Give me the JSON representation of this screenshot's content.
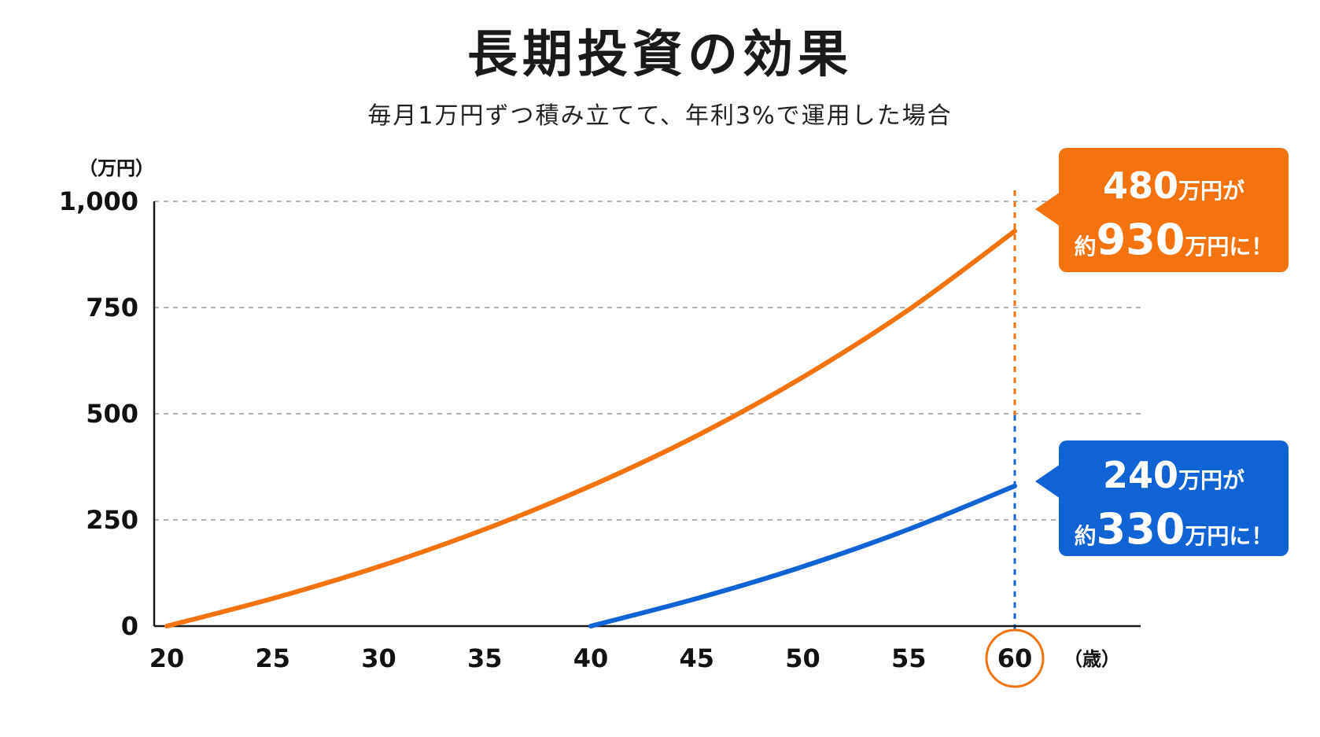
{
  "title": "長期投資の効果",
  "subtitle": "毎月1万円ずつ積み立てて、年利3%で運用した場合",
  "colors": {
    "orange": "#F5730F",
    "blue": "#0F63D4",
    "axis": "#1a1a1a",
    "grid": "#9a9a9a",
    "text": "#111111"
  },
  "callouts": {
    "orange": {
      "line1_amount": "480",
      "line1_suffix": "万円が",
      "line2_prefix": "約",
      "line2_amount": "930",
      "line2_suffix": "万円に！"
    },
    "blue": {
      "line1_amount": "240",
      "line1_suffix": "万円が",
      "line2_prefix": "約",
      "line2_amount": "330",
      "line2_suffix": "万円に！"
    }
  },
  "chart_data": {
    "type": "line",
    "title": "長期投資の効果",
    "subtitle": "毎月1万円ずつ積み立てて、年利3%で運用した場合",
    "xlabel": "（歳）",
    "ylabel": "（万円）",
    "xlim": [
      20,
      62
    ],
    "ylim": [
      0,
      1000
    ],
    "x_ticks": [
      20,
      25,
      30,
      35,
      40,
      45,
      50,
      55,
      60
    ],
    "x_tick_labels": [
      "20",
      "25",
      "30",
      "35",
      "40",
      "45",
      "50",
      "55",
      "60"
    ],
    "y_ticks": [
      0,
      250,
      500,
      750,
      1000
    ],
    "y_tick_labels": [
      "0",
      "250",
      "500",
      "750",
      "1,000"
    ],
    "grid": "horizontal-dashed",
    "highlight_x": 60,
    "series": [
      {
        "color": "#F5730F",
        "x": [
          20,
          25,
          30,
          35,
          40,
          45,
          50,
          55,
          60
        ],
        "y": [
          0,
          65,
          140,
          228,
          330,
          448,
          586,
          745,
          930
        ]
      },
      {
        "color": "#0F63D4",
        "x": [
          40,
          45,
          50,
          55,
          60
        ],
        "y": [
          0,
          65,
          140,
          228,
          330
        ]
      }
    ]
  }
}
